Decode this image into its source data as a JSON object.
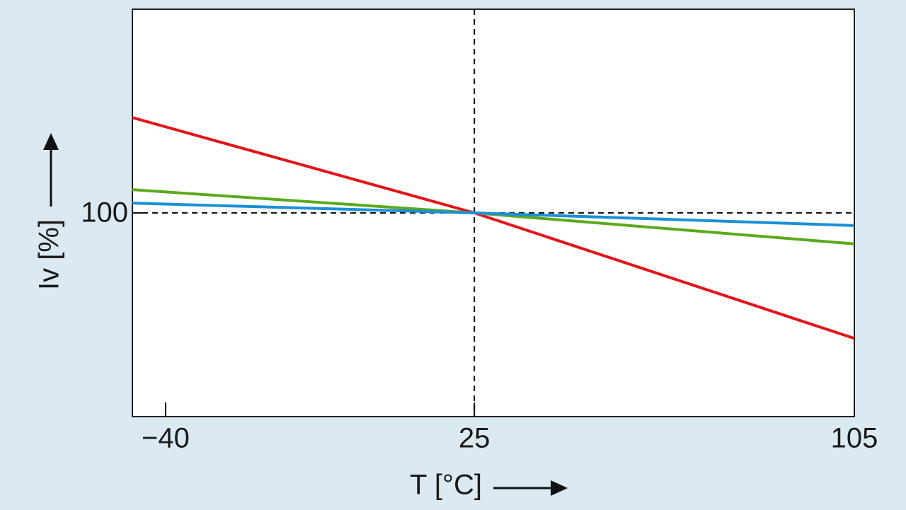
{
  "chart_data": {
    "type": "line",
    "x_label": "T [°C]",
    "y_label": "Iv [%]",
    "x": [
      -47,
      25,
      105
    ],
    "series": [
      {
        "name": "red",
        "color": "#e3141b",
        "values": [
          123.4,
          100,
          69.2
        ]
      },
      {
        "name": "green",
        "color": "#5aaa1e",
        "values": [
          105.7,
          100,
          92.4
        ]
      },
      {
        "name": "blue",
        "color": "#1a8fd8",
        "values": [
          102.4,
          100,
          96.9
        ]
      }
    ],
    "xlim": [
      -47,
      105
    ],
    "ylim": [
      50,
      150
    ],
    "xticks": [
      {
        "value": -40,
        "label": "−40"
      },
      25,
      105
    ],
    "yticks": [
      100
    ],
    "reference_lines": {
      "x": 25,
      "y": 100
    }
  }
}
